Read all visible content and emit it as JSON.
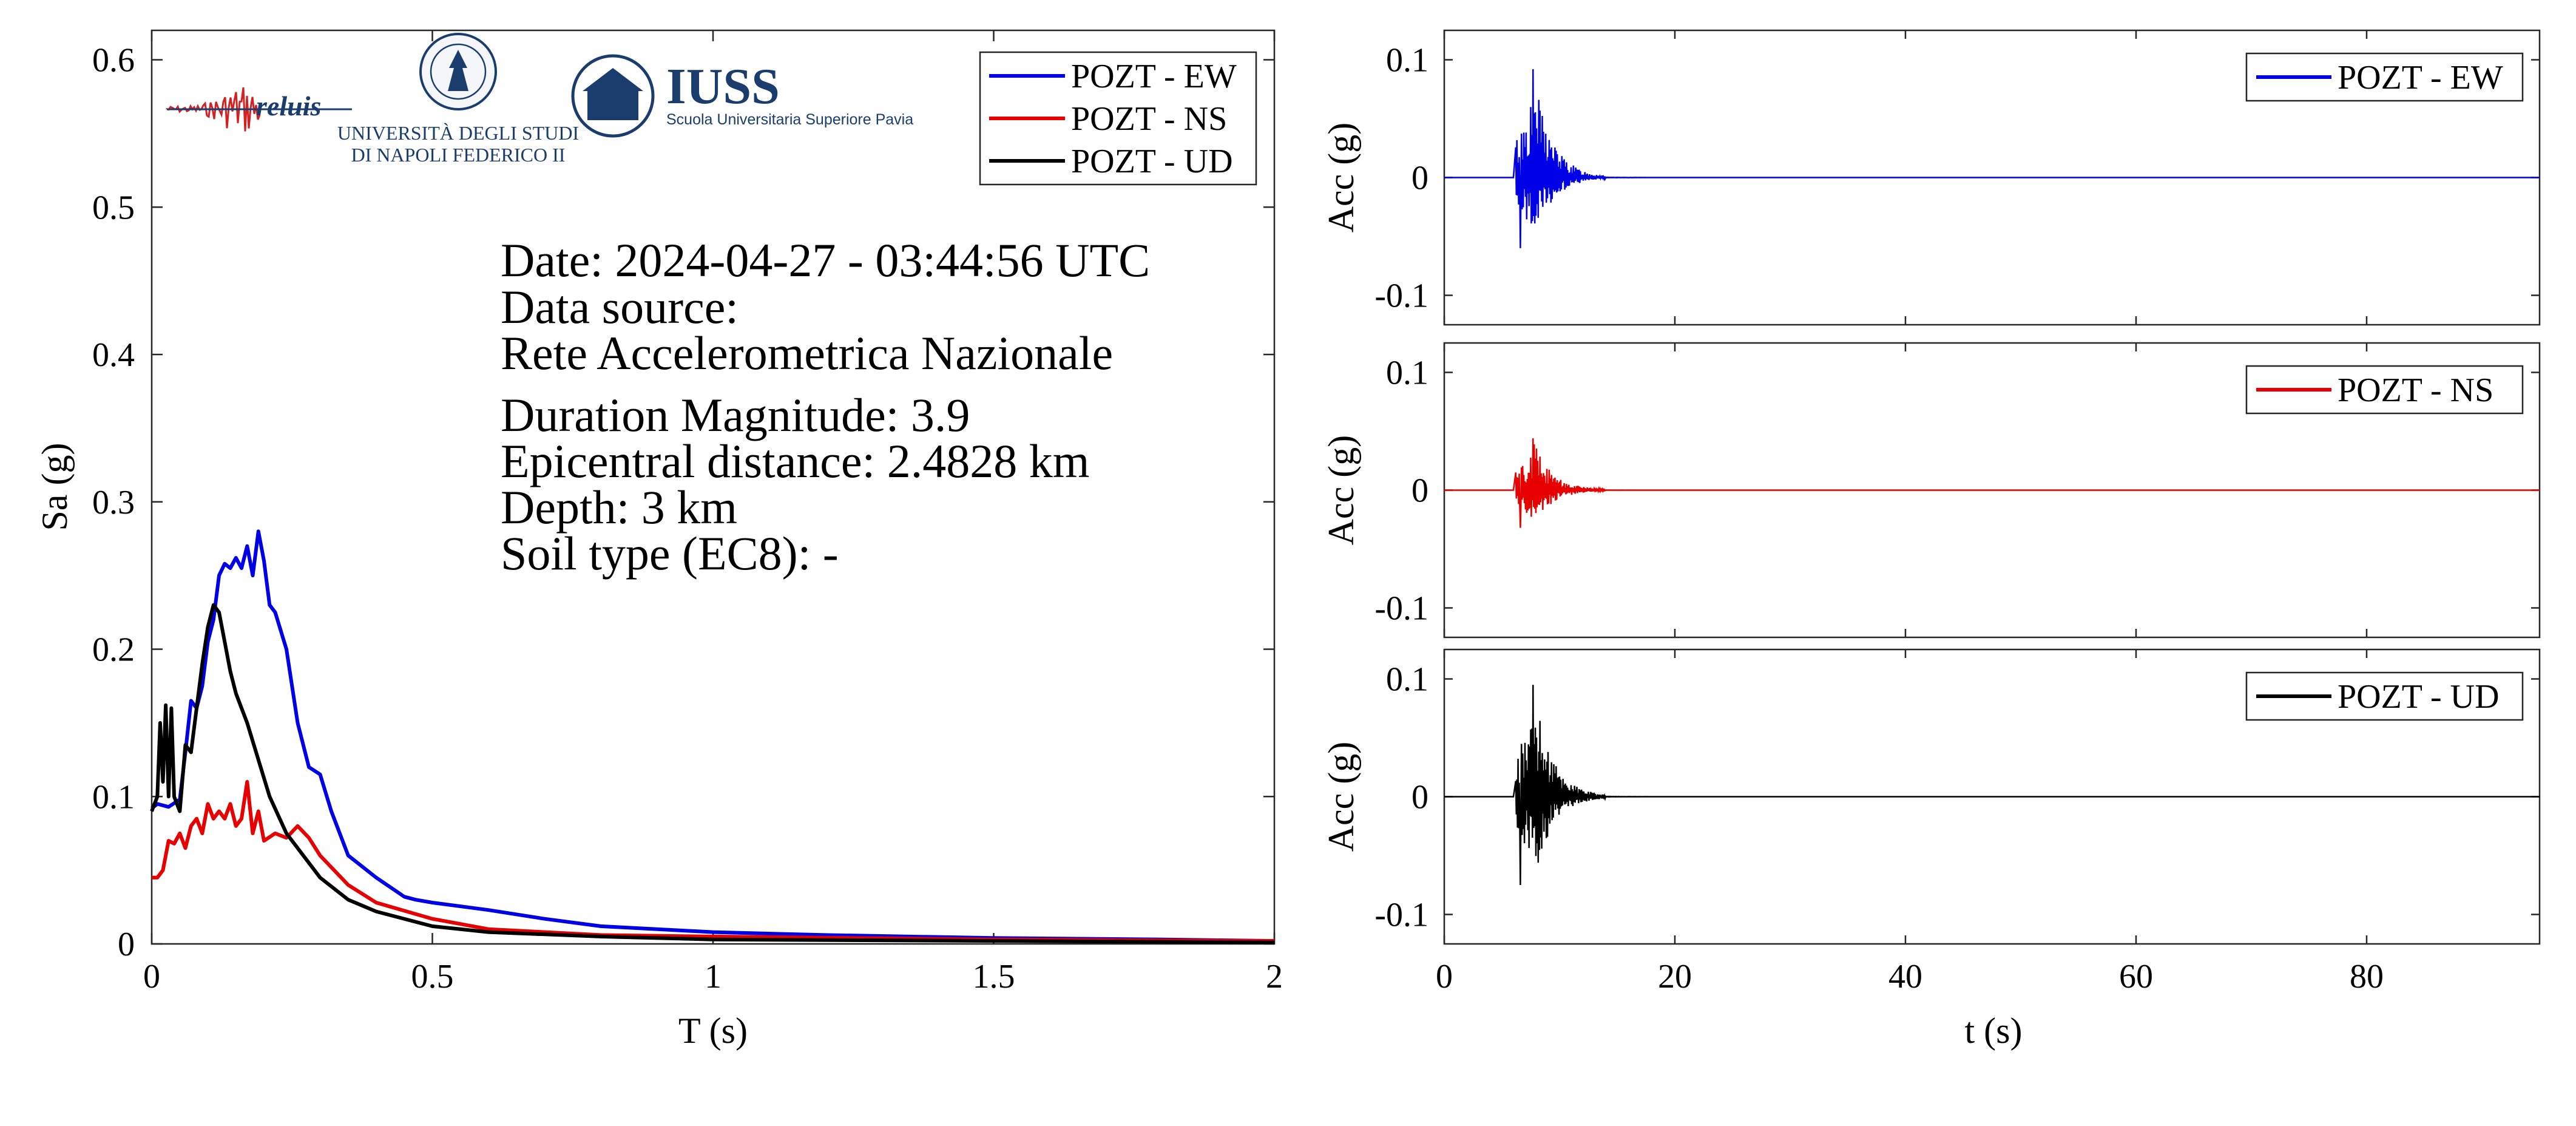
{
  "colors": {
    "ew": "#0000e6",
    "ns": "#e60000",
    "ud": "#000000",
    "frame": "#262626",
    "logo_blue": "#1a3d6e",
    "logo_red": "#d42020"
  },
  "logos": {
    "reluis": "reluis",
    "unina_line1": "UNIVERSITÀ DEGLI STUDI",
    "unina_line2": "DI NAPOLI FEDERICO II",
    "iuss_title": "IUSS",
    "iuss_subtitle": "Scuola Universitaria Superiore Pavia"
  },
  "info": {
    "date": "Date: 2024-04-27 - 03:44:56 UTC",
    "source_label": "Data source:",
    "source_value": "Rete Accelerometrica Nazionale",
    "magnitude": "Duration Magnitude: 3.9",
    "distance": "Epicentral distance: 2.4828 km",
    "depth": "Depth: 3 km",
    "soil": "Soil type (EC8): -"
  },
  "chart_data": [
    {
      "type": "line",
      "xlabel": "T (s)",
      "ylabel": "Sa (g)",
      "xlim": [
        0,
        2
      ],
      "ylim": [
        0,
        0.62
      ],
      "xticks": [
        0,
        0.5,
        1,
        1.5,
        2
      ],
      "xtick_labels": [
        "0",
        "0.5",
        "1",
        "1.5",
        "2"
      ],
      "yticks": [
        0,
        0.1,
        0.2,
        0.3,
        0.4,
        0.5,
        0.6
      ],
      "ytick_labels": [
        "0",
        "0.1",
        "0.2",
        "0.3",
        "0.4",
        "0.5",
        "0.6"
      ],
      "legend_position": "top-right",
      "series": [
        {
          "name": "POZT - EW",
          "color": "#0000e6",
          "x": [
            0,
            0.01,
            0.03,
            0.05,
            0.06,
            0.07,
            0.08,
            0.09,
            0.1,
            0.11,
            0.12,
            0.13,
            0.14,
            0.15,
            0.16,
            0.17,
            0.18,
            0.19,
            0.2,
            0.21,
            0.22,
            0.24,
            0.26,
            0.28,
            0.3,
            0.32,
            0.35,
            0.4,
            0.45,
            0.47,
            0.5,
            0.6,
            0.7,
            0.8,
            1.0,
            1.2,
            1.5,
            1.8,
            2.0
          ],
          "y": [
            0.092,
            0.095,
            0.093,
            0.098,
            0.13,
            0.165,
            0.16,
            0.175,
            0.205,
            0.22,
            0.25,
            0.258,
            0.255,
            0.262,
            0.255,
            0.27,
            0.25,
            0.28,
            0.26,
            0.23,
            0.225,
            0.2,
            0.15,
            0.12,
            0.115,
            0.09,
            0.06,
            0.045,
            0.032,
            0.03,
            0.028,
            0.023,
            0.017,
            0.012,
            0.008,
            0.006,
            0.004,
            0.003,
            0.002
          ]
        },
        {
          "name": "POZT - NS",
          "color": "#e60000",
          "x": [
            0,
            0.01,
            0.02,
            0.03,
            0.04,
            0.05,
            0.06,
            0.07,
            0.08,
            0.09,
            0.1,
            0.11,
            0.12,
            0.13,
            0.14,
            0.15,
            0.16,
            0.17,
            0.18,
            0.19,
            0.2,
            0.22,
            0.24,
            0.26,
            0.28,
            0.3,
            0.35,
            0.4,
            0.5,
            0.6,
            0.8,
            1.0,
            1.5,
            2.0
          ],
          "y": [
            0.045,
            0.045,
            0.05,
            0.07,
            0.068,
            0.075,
            0.065,
            0.08,
            0.085,
            0.075,
            0.095,
            0.085,
            0.09,
            0.085,
            0.095,
            0.08,
            0.085,
            0.11,
            0.075,
            0.09,
            0.07,
            0.075,
            0.072,
            0.08,
            0.072,
            0.06,
            0.04,
            0.028,
            0.017,
            0.01,
            0.006,
            0.005,
            0.003,
            0.002
          ]
        },
        {
          "name": "POZT - UD",
          "color": "#000000",
          "x": [
            0,
            0.01,
            0.015,
            0.02,
            0.025,
            0.03,
            0.035,
            0.04,
            0.045,
            0.05,
            0.06,
            0.07,
            0.08,
            0.09,
            0.1,
            0.11,
            0.12,
            0.13,
            0.14,
            0.15,
            0.17,
            0.19,
            0.21,
            0.24,
            0.27,
            0.3,
            0.35,
            0.4,
            0.5,
            0.6,
            0.8,
            1.0,
            1.5,
            2.0
          ],
          "y": [
            0.09,
            0.1,
            0.15,
            0.11,
            0.162,
            0.1,
            0.16,
            0.1,
            0.095,
            0.09,
            0.135,
            0.13,
            0.16,
            0.19,
            0.215,
            0.23,
            0.225,
            0.205,
            0.185,
            0.17,
            0.15,
            0.125,
            0.1,
            0.075,
            0.06,
            0.045,
            0.03,
            0.022,
            0.012,
            0.008,
            0.005,
            0.003,
            0.002,
            0.001
          ]
        }
      ]
    },
    {
      "type": "line",
      "ylabel": "Acc (g)",
      "xlim": [
        0,
        95
      ],
      "ylim": [
        -0.125,
        0.125
      ],
      "yticks": [
        -0.1,
        0,
        0.1
      ],
      "ytick_labels": [
        "-0.1",
        "0",
        "0.1"
      ],
      "xticks": [
        0,
        20,
        40,
        60,
        80
      ],
      "legend_position": "top-right",
      "series": [
        {
          "name": "POZT - EW",
          "color": "#0000e6",
          "peak": 0.092,
          "trough": -0.06,
          "onset": 6.2,
          "decay_end": 14
        }
      ]
    },
    {
      "type": "line",
      "ylabel": "Acc (g)",
      "xlim": [
        0,
        95
      ],
      "ylim": [
        -0.125,
        0.125
      ],
      "yticks": [
        -0.1,
        0,
        0.1
      ],
      "ytick_labels": [
        "-0.1",
        "0",
        "0.1"
      ],
      "xticks": [
        0,
        20,
        40,
        60,
        80
      ],
      "legend_position": "top-right",
      "series": [
        {
          "name": "POZT - NS",
          "color": "#e60000",
          "peak": 0.044,
          "trough": -0.032,
          "onset": 6.2,
          "decay_end": 14
        }
      ]
    },
    {
      "type": "line",
      "xlabel": "t (s)",
      "ylabel": "Acc (g)",
      "xlim": [
        0,
        95
      ],
      "ylim": [
        -0.125,
        0.125
      ],
      "yticks": [
        -0.1,
        0,
        0.1
      ],
      "ytick_labels": [
        "-0.1",
        "0",
        "0.1"
      ],
      "xticks": [
        0,
        20,
        40,
        60,
        80
      ],
      "xtick_labels": [
        "0",
        "20",
        "40",
        "60",
        "80"
      ],
      "legend_position": "top-right",
      "series": [
        {
          "name": "POZT - UD",
          "color": "#000000",
          "peak": 0.095,
          "trough": -0.075,
          "onset": 6.2,
          "decay_end": 14
        }
      ]
    }
  ]
}
